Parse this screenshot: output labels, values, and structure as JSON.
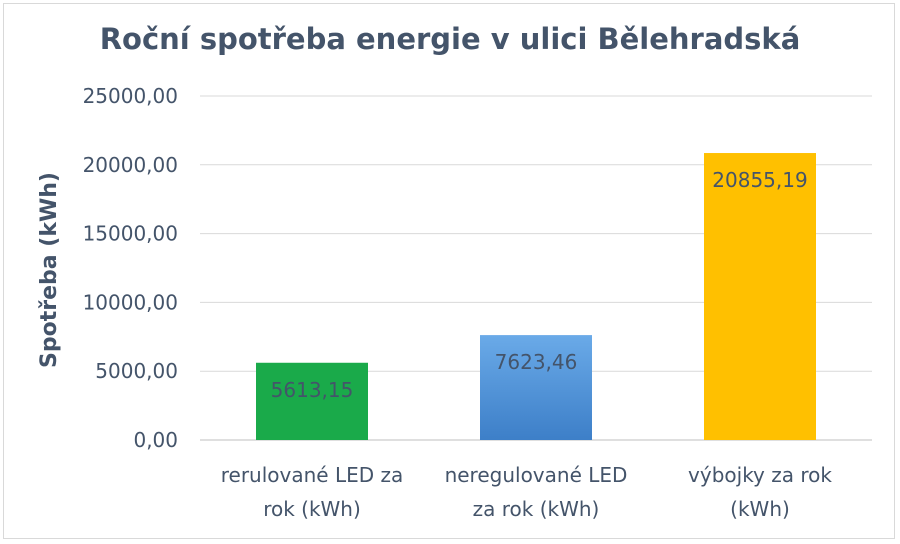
{
  "chart_data": {
    "type": "bar",
    "title": "Roční spotřeba energie v ulici Bělehradská",
    "ylabel": "Spotřeba (kWh)",
    "xlabel": "",
    "ylim": [
      0,
      25000
    ],
    "yticks": [
      0,
      5000,
      10000,
      15000,
      20000,
      25000
    ],
    "ytick_labels": [
      "0,00",
      "5000,00",
      "10000,00",
      "15000,00",
      "20000,00",
      "25000,00"
    ],
    "grid": true,
    "legend": "none",
    "categories": [
      [
        "rerulované LED za",
        "rok (kWh)"
      ],
      [
        "neregulované LED",
        "za rok (kWh)"
      ],
      [
        "výbojky za rok",
        "(kWh)"
      ]
    ],
    "values": [
      5613.15,
      7623.46,
      20855.19
    ],
    "value_labels": [
      "5613,15",
      "7623,46",
      "20855,19"
    ],
    "colors": [
      "#1aaa4a",
      "#4a8fd6",
      "#ffc000"
    ]
  }
}
